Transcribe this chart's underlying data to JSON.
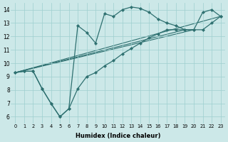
{
  "xlabel": "Humidex (Indice chaleur)",
  "ylabel": "",
  "background_color": "#cce8e8",
  "line_color": "#2e7070",
  "xlim": [
    -0.5,
    23.5
  ],
  "ylim": [
    5.5,
    14.5
  ],
  "xticks": [
    0,
    1,
    2,
    3,
    4,
    5,
    6,
    7,
    8,
    9,
    10,
    11,
    12,
    13,
    14,
    15,
    16,
    17,
    18,
    19,
    20,
    21,
    22,
    23
  ],
  "yticks": [
    6,
    7,
    8,
    9,
    10,
    11,
    12,
    13,
    14
  ],
  "series1_x": [
    0,
    1,
    2,
    3,
    4,
    5,
    6,
    7,
    8,
    9,
    10,
    11,
    12,
    13,
    14,
    15,
    16,
    17,
    18,
    19,
    20,
    21,
    22,
    23
  ],
  "series1_y": [
    9.3,
    9.4,
    9.4,
    8.1,
    7.0,
    6.0,
    6.6,
    8.1,
    9.0,
    9.3,
    9.8,
    10.2,
    10.7,
    11.1,
    11.5,
    11.9,
    12.2,
    12.5,
    12.5,
    12.5,
    12.5,
    12.5,
    13.0,
    13.5
  ],
  "series2_x": [
    0,
    1,
    2,
    3,
    4,
    5,
    6,
    7,
    8,
    9,
    10,
    11,
    12,
    13,
    14,
    15,
    16,
    17,
    18,
    19,
    20,
    21,
    22,
    23
  ],
  "series2_y": [
    9.3,
    9.4,
    9.4,
    8.1,
    7.0,
    6.0,
    6.6,
    12.8,
    12.3,
    11.5,
    13.7,
    13.5,
    14.0,
    14.2,
    14.1,
    13.8,
    13.3,
    13.0,
    12.8,
    12.5,
    12.5,
    13.8,
    14.0,
    13.5
  ],
  "line1_x": [
    0,
    19
  ],
  "line1_y": [
    9.3,
    12.5
  ],
  "line2_x": [
    0,
    20
  ],
  "line2_y": [
    9.3,
    12.5
  ],
  "line3_x": [
    0,
    23
  ],
  "line3_y": [
    9.3,
    13.5
  ]
}
